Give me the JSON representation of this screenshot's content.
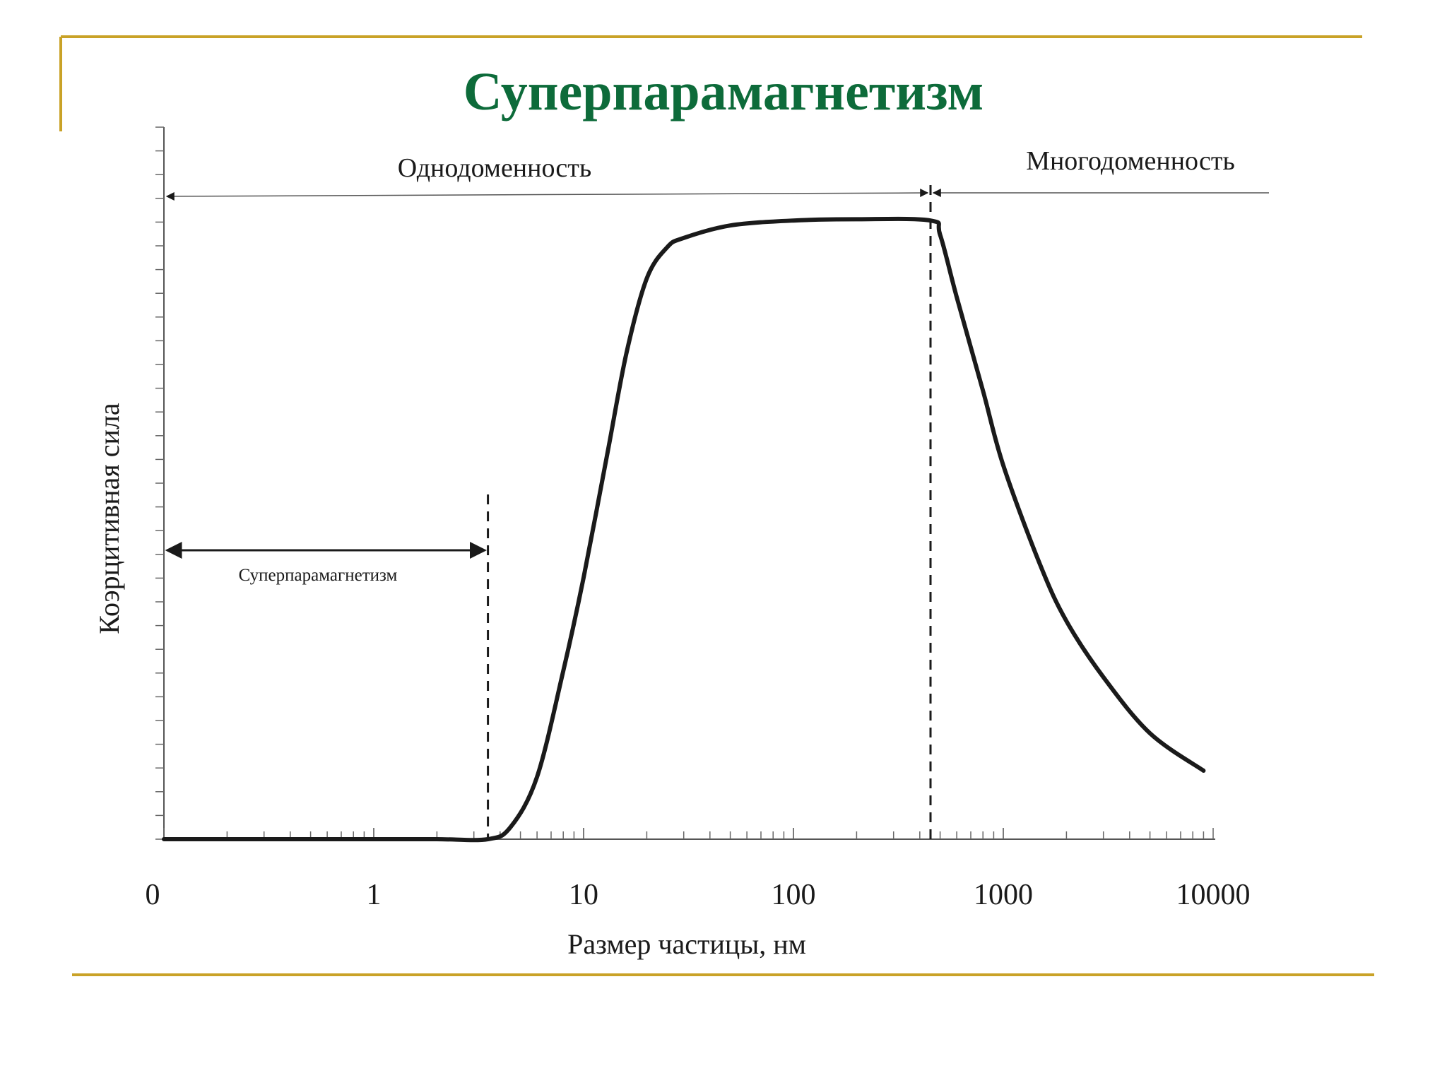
{
  "slide": {
    "title": "Суперпарамагнетизм",
    "accent_line_color": "#c9a227",
    "title_color": "#0d6b3a"
  },
  "chart_data": {
    "type": "line",
    "title": "",
    "xlabel": "Размер частицы, нм",
    "ylabel": "Коэрцитивная сила",
    "x_scale": "log",
    "x_ticks": [
      "0",
      "1",
      "10",
      "100",
      "1000",
      "10000"
    ],
    "y_ticks_labeled": false,
    "grid": false,
    "series": [
      {
        "x": [
          0.1,
          0.5,
          1,
          2,
          3.5,
          4.5,
          6,
          8,
          10,
          13,
          16,
          20,
          25,
          30,
          50,
          100,
          200,
          450,
          500,
          600,
          800,
          1000,
          1500,
          2000,
          3000,
          5000,
          9000
        ],
        "y": [
          0,
          0,
          0,
          0,
          0,
          0.02,
          0.1,
          0.27,
          0.42,
          0.62,
          0.78,
          0.9,
          0.95,
          0.965,
          0.985,
          0.993,
          0.995,
          0.993,
          0.97,
          0.87,
          0.72,
          0.6,
          0.44,
          0.35,
          0.26,
          0.17,
          0.11
        ]
      }
    ],
    "annotations": [
      {
        "label": "Суперпарамагнетизм",
        "x_from": 0.1,
        "x_to": 3.5
      },
      {
        "label": "Однодоменность",
        "x_from": 0.1,
        "x_to": 450
      },
      {
        "label": "Многодоменность",
        "x_from": 450,
        "x_to": 20000
      }
    ],
    "boundaries": [
      3.5,
      450
    ]
  }
}
